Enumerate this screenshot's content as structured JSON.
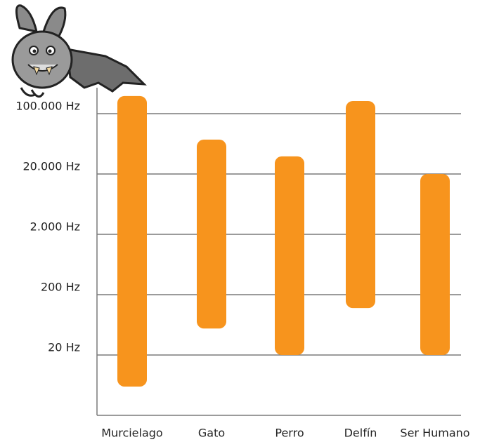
{
  "chart_data": {
    "type": "floating-bar",
    "categories": [
      "Murcielago",
      "Gato",
      "Perro",
      "Delfín",
      "Ser Humano"
    ],
    "low": [
      6,
      55,
      20,
      120,
      20
    ],
    "high": [
      160000,
      50000,
      32000,
      140000,
      20000
    ],
    "color": "#f7941d",
    "ylim": [
      2,
      200000
    ],
    "yticks": [
      {
        "value": 20,
        "label": "20 Hz"
      },
      {
        "value": 200,
        "label": "200 Hz"
      },
      {
        "value": 2000,
        "label": "2.000 Hz"
      },
      {
        "value": 20000,
        "label": "20.000 Hz"
      },
      {
        "value": 100000,
        "label": "100.000 Hz"
      }
    ],
    "grid": true
  }
}
